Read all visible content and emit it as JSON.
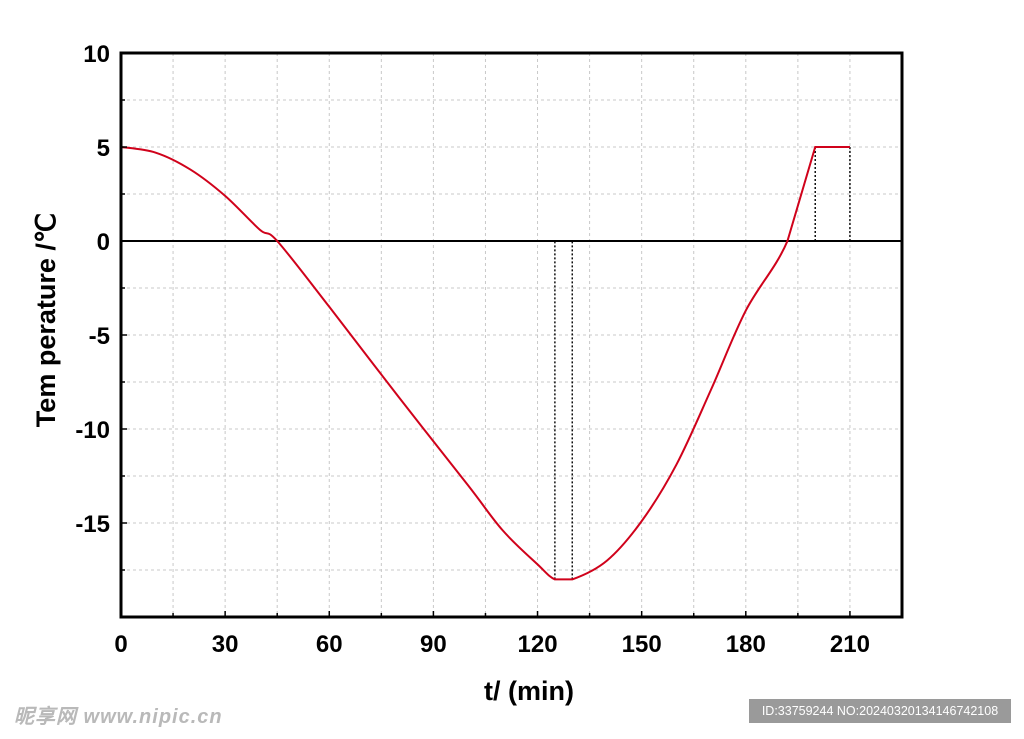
{
  "chart_data": {
    "type": "line",
    "xlabel": "t/ (min)",
    "ylabel": "Tem perature /℃",
    "xlim": [
      0,
      225
    ],
    "ylim": [
      -20,
      10
    ],
    "x_ticks": [
      0,
      30,
      60,
      90,
      120,
      150,
      180,
      210
    ],
    "y_ticks": [
      10,
      5,
      0,
      -5,
      -10,
      -15
    ],
    "grid": true,
    "series": [
      {
        "color": "#d0021b",
        "x": [
          0,
          10,
          20,
          30,
          40,
          45,
          60,
          80,
          100,
          110,
          120,
          125,
          130,
          140,
          150,
          160,
          170,
          180,
          192,
          200,
          210
        ],
        "y": [
          5,
          4.7,
          3.8,
          2.4,
          0.6,
          0,
          -3.5,
          -8.3,
          -13.0,
          -15.4,
          -17.2,
          -18,
          -18,
          -17.0,
          -14.9,
          -11.9,
          -7.9,
          -3.7,
          0,
          5,
          5
        ]
      }
    ],
    "reference_lines": [
      {
        "x": 125,
        "y_from": -18,
        "y_to": 0
      },
      {
        "x": 130,
        "y_from": -18,
        "y_to": 0
      },
      {
        "x": 200,
        "y_from": 0,
        "y_to": 5
      },
      {
        "x": 210,
        "y_from": 0,
        "y_to": 5
      }
    ]
  },
  "watermark": {
    "left": "昵享网 www.nipic.cn",
    "right": "ID:33759244 NO:20240320134146742108"
  }
}
